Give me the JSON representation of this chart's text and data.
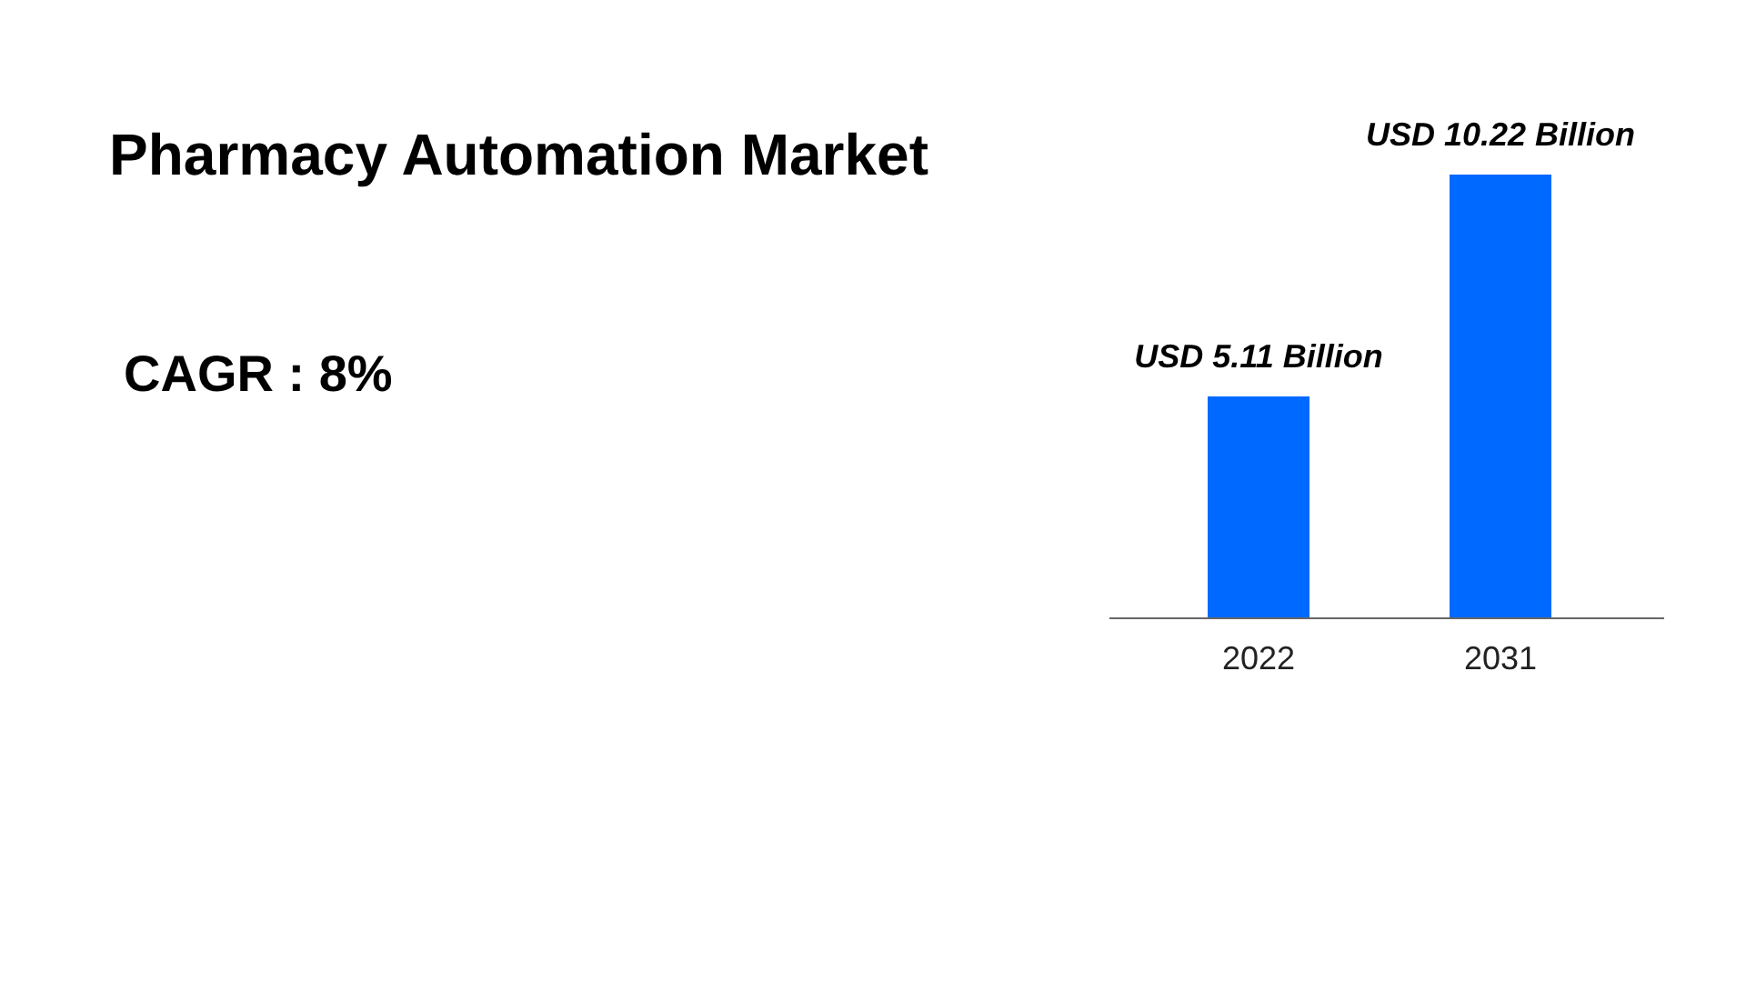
{
  "chart_data": {
    "type": "bar",
    "title": "Pharmacy Automation Market",
    "categories": [
      "2022",
      "2031"
    ],
    "values": [
      5.11,
      10.22
    ],
    "value_labels": [
      "USD 5.11 Billion",
      "USD 10.22 Billion"
    ],
    "color": "#0069ff",
    "annotations": [
      "CAGR : 8%"
    ]
  }
}
